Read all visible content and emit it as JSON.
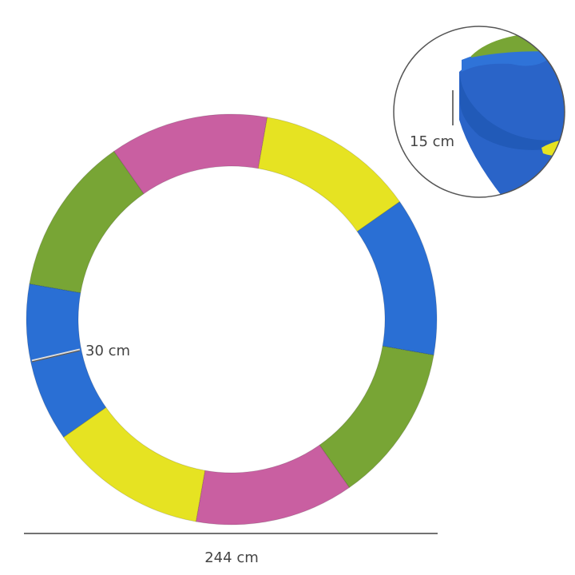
{
  "labels": {
    "width": "30 cm",
    "height": "15 cm",
    "diameter": "244 cm"
  },
  "ring": {
    "segments": [
      {
        "color": "#c95fa1"
      },
      {
        "color": "#e6e322"
      },
      {
        "color": "#2a6fd4"
      },
      {
        "color": "#78a535"
      },
      {
        "color": "#c95fa1"
      },
      {
        "color": "#e6e322"
      },
      {
        "color": "#2a6fd4"
      },
      {
        "color": "#78a535"
      }
    ]
  },
  "colors": {
    "line": "#444444",
    "inset_border": "#555555"
  }
}
